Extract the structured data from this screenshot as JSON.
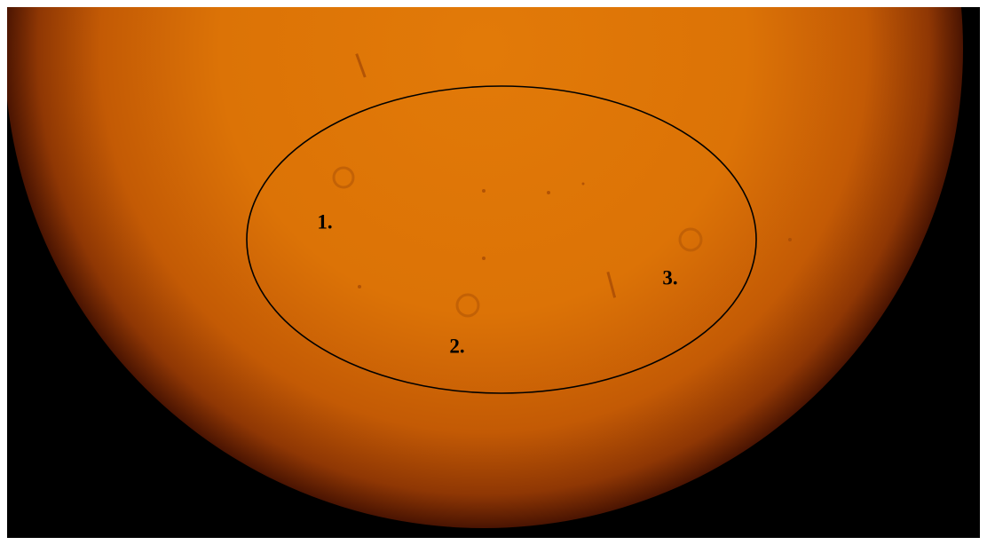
{
  "labels": [
    "1.",
    "2.",
    "3."
  ]
}
